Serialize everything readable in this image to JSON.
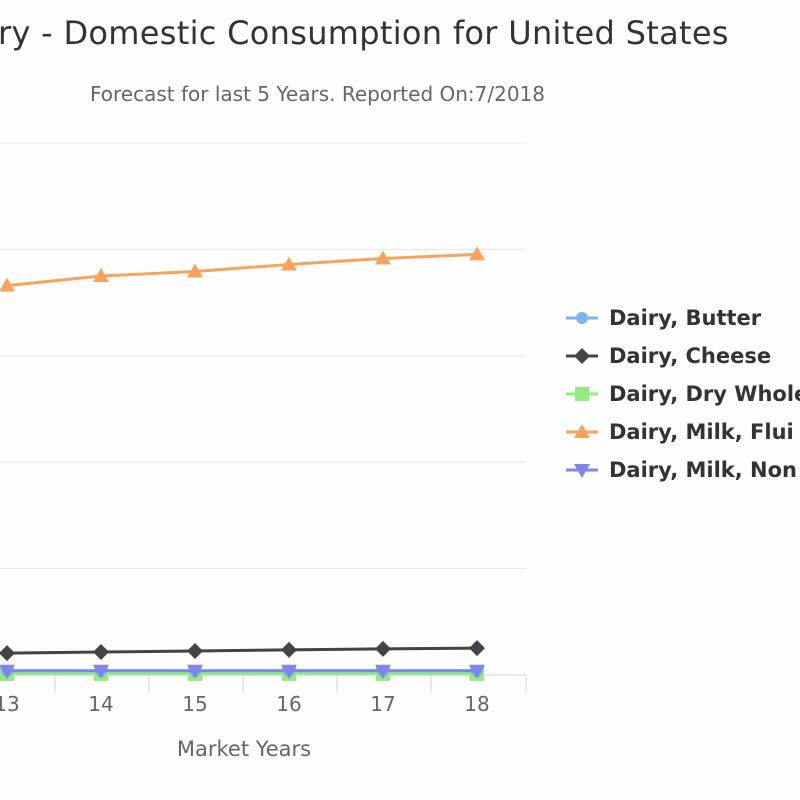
{
  "chart_data": {
    "type": "line",
    "title": "ry - Domestic Consumption for United States",
    "subtitle": "Forecast for last 5 Years. Reported On:7/2018",
    "xlabel": "Market Years",
    "ylabel": "",
    "categories": [
      "13",
      "14",
      "15",
      "16",
      "17",
      "18"
    ],
    "ylim": [
      0,
      25000
    ],
    "grid": true,
    "legend_position": "right",
    "series": [
      {
        "name": "Dairy, Butter",
        "color": "#7cb5ec",
        "marker": "circle",
        "values": [
          200,
          200,
          200,
          200,
          200,
          200
        ]
      },
      {
        "name": "Dairy, Cheese",
        "color": "#434348",
        "marker": "diamond",
        "values": [
          1030,
          1080,
          1130,
          1180,
          1230,
          1260
        ]
      },
      {
        "name": "Dairy, Dry Whole",
        "color": "#90ed7d",
        "marker": "square",
        "values": [
          50,
          50,
          50,
          50,
          50,
          50
        ]
      },
      {
        "name": "Dairy, Milk, Flui",
        "color": "#f7a35c",
        "marker": "triangle",
        "values": [
          18300,
          18750,
          18960,
          19290,
          19575,
          19765
        ]
      },
      {
        "name": "Dairy, Milk, Non",
        "color": "#8085e9",
        "marker": "triangle-down",
        "values": [
          200,
          200,
          200,
          200,
          200,
          200
        ]
      }
    ]
  }
}
